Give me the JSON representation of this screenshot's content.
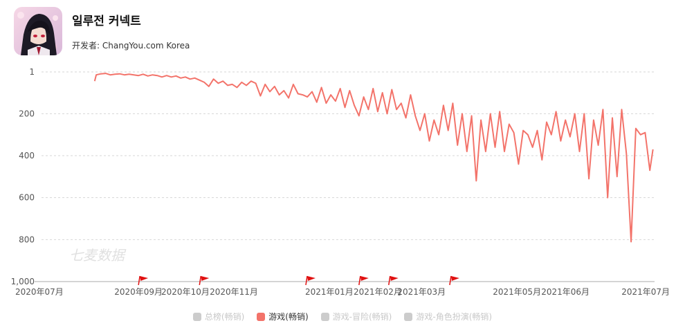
{
  "header": {
    "title": "일루전 커넥트",
    "developer_label": "开发者:",
    "developer_name": "ChangYou.com Korea",
    "icon": "anime-character-app-icon"
  },
  "watermark": "七麦数据",
  "legend": [
    {
      "label": "总榜(畅销)",
      "active": false,
      "color": "#cccccc"
    },
    {
      "label": "游戏(畅销)",
      "active": true,
      "color": "#f3736a"
    },
    {
      "label": "游戏-冒险(畅销)",
      "active": false,
      "color": "#cccccc"
    },
    {
      "label": "游戏-角色扮演(畅销)",
      "active": false,
      "color": "#cccccc"
    }
  ],
  "chart_data": {
    "type": "line",
    "ylim": [
      1,
      1000
    ],
    "y_reversed": true,
    "y_ticks": [
      1,
      200,
      400,
      600,
      800,
      1000
    ],
    "y_tick_labels": [
      "1",
      "200",
      "400",
      "600",
      "800",
      "1,000"
    ],
    "grid": "horizontal-dashed",
    "x_ticks": [
      "2020-07-01",
      "2020-09-01",
      "2020-10-01",
      "2020-11-01",
      "2021-01-01",
      "2021-02-01",
      "2021-03-01",
      "2021-05-01",
      "2021-06-01",
      "2021-07-01"
    ],
    "x_tick_labels": [
      "2020年07月",
      "2020年09月",
      "2020年10月",
      "2020年11月",
      "2021年01月",
      "2021年02月",
      "2021年03月",
      "2021年05月",
      "2021年06月",
      "2021年07月"
    ],
    "event_flags": [
      "2020-09-01",
      "2020-10-10",
      "2020-12-17",
      "2021-01-20",
      "2021-02-08",
      "2021-03-19"
    ],
    "series": [
      {
        "color": "#f3736a",
        "points": [
          [
            "2020-08-04",
            45
          ],
          [
            "2020-08-05",
            15
          ],
          [
            "2020-08-08",
            10
          ],
          [
            "2020-08-11",
            8
          ],
          [
            "2020-08-14",
            15
          ],
          [
            "2020-08-17",
            12
          ],
          [
            "2020-08-20",
            10
          ],
          [
            "2020-08-23",
            15
          ],
          [
            "2020-08-26",
            12
          ],
          [
            "2020-08-29",
            15
          ],
          [
            "2020-09-01",
            18
          ],
          [
            "2020-09-04",
            12
          ],
          [
            "2020-09-07",
            20
          ],
          [
            "2020-09-10",
            15
          ],
          [
            "2020-09-13",
            18
          ],
          [
            "2020-09-16",
            25
          ],
          [
            "2020-09-19",
            18
          ],
          [
            "2020-09-22",
            25
          ],
          [
            "2020-09-25",
            20
          ],
          [
            "2020-09-28",
            30
          ],
          [
            "2020-10-01",
            25
          ],
          [
            "2020-10-04",
            35
          ],
          [
            "2020-10-07",
            30
          ],
          [
            "2020-10-10",
            40
          ],
          [
            "2020-10-13",
            50
          ],
          [
            "2020-10-16",
            70
          ],
          [
            "2020-10-19",
            35
          ],
          [
            "2020-10-22",
            55
          ],
          [
            "2020-10-25",
            45
          ],
          [
            "2020-10-28",
            65
          ],
          [
            "2020-10-31",
            60
          ],
          [
            "2020-11-03",
            75
          ],
          [
            "2020-11-06",
            50
          ],
          [
            "2020-11-09",
            65
          ],
          [
            "2020-11-12",
            45
          ],
          [
            "2020-11-15",
            55
          ],
          [
            "2020-11-18",
            115
          ],
          [
            "2020-11-21",
            60
          ],
          [
            "2020-11-24",
            95
          ],
          [
            "2020-11-27",
            70
          ],
          [
            "2020-11-30",
            110
          ],
          [
            "2020-12-03",
            90
          ],
          [
            "2020-12-06",
            125
          ],
          [
            "2020-12-09",
            60
          ],
          [
            "2020-12-12",
            105
          ],
          [
            "2020-12-15",
            110
          ],
          [
            "2020-12-18",
            120
          ],
          [
            "2020-12-21",
            95
          ],
          [
            "2020-12-24",
            145
          ],
          [
            "2020-12-27",
            75
          ],
          [
            "2020-12-30",
            150
          ],
          [
            "2021-01-02",
            110
          ],
          [
            "2021-01-05",
            140
          ],
          [
            "2021-01-08",
            80
          ],
          [
            "2021-01-11",
            170
          ],
          [
            "2021-01-14",
            90
          ],
          [
            "2021-01-17",
            160
          ],
          [
            "2021-01-20",
            210
          ],
          [
            "2021-01-23",
            120
          ],
          [
            "2021-01-26",
            180
          ],
          [
            "2021-01-29",
            80
          ],
          [
            "2021-02-01",
            190
          ],
          [
            "2021-02-04",
            100
          ],
          [
            "2021-02-07",
            200
          ],
          [
            "2021-02-10",
            85
          ],
          [
            "2021-02-13",
            180
          ],
          [
            "2021-02-16",
            150
          ],
          [
            "2021-02-19",
            220
          ],
          [
            "2021-02-22",
            110
          ],
          [
            "2021-02-25",
            210
          ],
          [
            "2021-02-28",
            280
          ],
          [
            "2021-03-03",
            200
          ],
          [
            "2021-03-06",
            330
          ],
          [
            "2021-03-09",
            230
          ],
          [
            "2021-03-12",
            300
          ],
          [
            "2021-03-15",
            160
          ],
          [
            "2021-03-18",
            280
          ],
          [
            "2021-03-21",
            150
          ],
          [
            "2021-03-24",
            350
          ],
          [
            "2021-03-27",
            200
          ],
          [
            "2021-03-30",
            380
          ],
          [
            "2021-04-02",
            210
          ],
          [
            "2021-04-05",
            520
          ],
          [
            "2021-04-08",
            230
          ],
          [
            "2021-04-11",
            380
          ],
          [
            "2021-04-14",
            200
          ],
          [
            "2021-04-17",
            360
          ],
          [
            "2021-04-20",
            190
          ],
          [
            "2021-04-23",
            380
          ],
          [
            "2021-04-26",
            250
          ],
          [
            "2021-04-29",
            290
          ],
          [
            "2021-05-02",
            440
          ],
          [
            "2021-05-05",
            280
          ],
          [
            "2021-05-08",
            300
          ],
          [
            "2021-05-11",
            360
          ],
          [
            "2021-05-14",
            280
          ],
          [
            "2021-05-17",
            420
          ],
          [
            "2021-05-20",
            240
          ],
          [
            "2021-05-23",
            300
          ],
          [
            "2021-05-26",
            190
          ],
          [
            "2021-05-29",
            330
          ],
          [
            "2021-06-01",
            230
          ],
          [
            "2021-06-04",
            310
          ],
          [
            "2021-06-07",
            200
          ],
          [
            "2021-06-10",
            380
          ],
          [
            "2021-06-13",
            200
          ],
          [
            "2021-06-16",
            510
          ],
          [
            "2021-06-19",
            230
          ],
          [
            "2021-06-22",
            350
          ],
          [
            "2021-06-25",
            180
          ],
          [
            "2021-06-28",
            600
          ],
          [
            "2021-07-01",
            220
          ],
          [
            "2021-07-04",
            500
          ],
          [
            "2021-07-07",
            180
          ],
          [
            "2021-07-10",
            390
          ],
          [
            "2021-07-13",
            810
          ],
          [
            "2021-07-16",
            270
          ],
          [
            "2021-07-19",
            300
          ],
          [
            "2021-07-22",
            290
          ],
          [
            "2021-07-25",
            470
          ],
          [
            "2021-07-27",
            370
          ]
        ]
      }
    ]
  }
}
